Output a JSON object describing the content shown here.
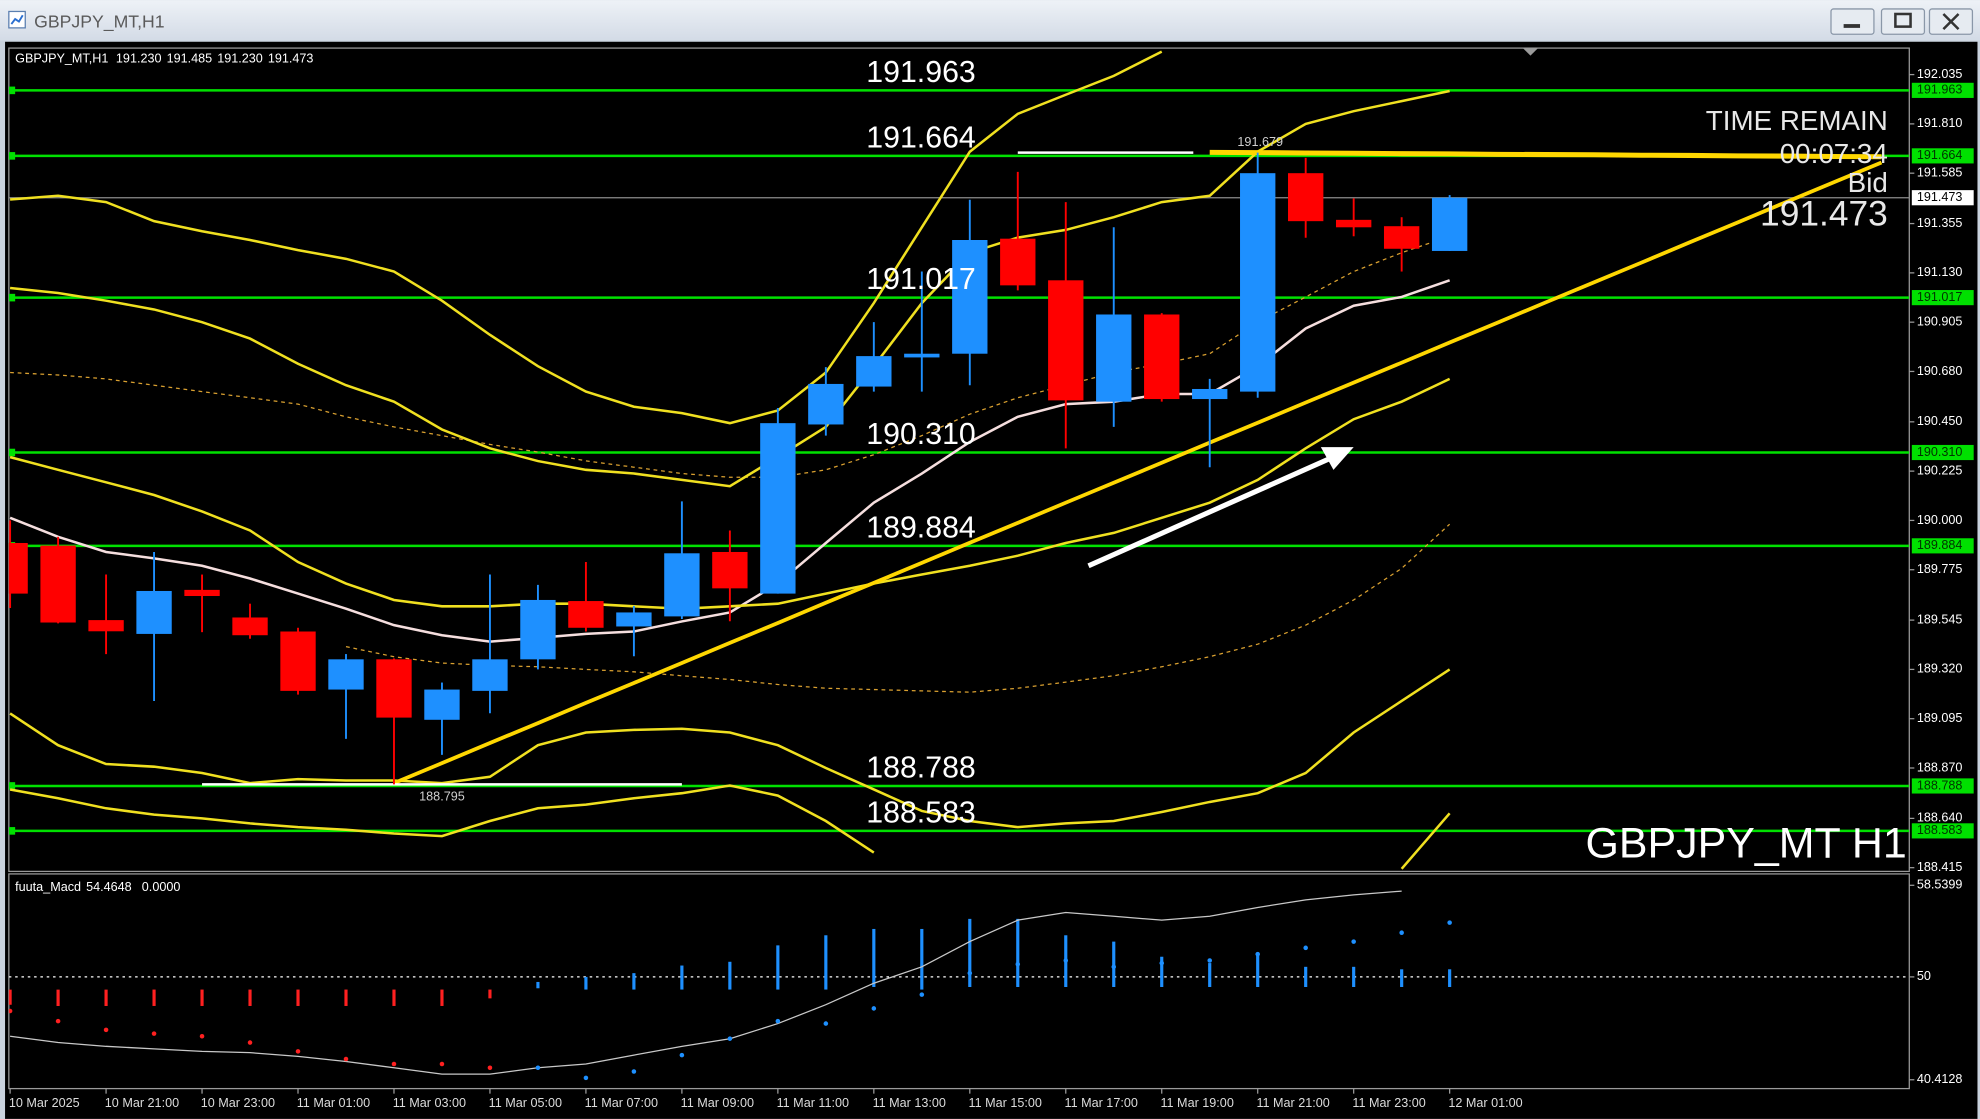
{
  "window_title": "GBPJPY_MT,H1",
  "chart_data": {
    "type": "candlestick",
    "symbol": "GBPJPY_MT,H1",
    "header_values": [
      {
        "value": 191.23,
        "label": "191.230"
      },
      191.485,
      {
        "value": 191.23,
        "label": "191.230"
      },
      191.473
    ],
    "categories": [
      "10 Mar 2025",
      null,
      "10 Mar 21:00",
      null,
      "10 Mar 23:00",
      null,
      "11 Mar 01:00",
      null,
      "11 Mar 03:00",
      null,
      "11 Mar 05:00",
      null,
      "11 Mar 07:00",
      null,
      "11 Mar 09:00",
      null,
      "11 Mar 11:00",
      null,
      "11 Mar 13:00",
      null,
      "11 Mar 15:00",
      null,
      "11 Mar 17:00",
      null,
      "11 Mar 19:00",
      null,
      "11 Mar 21:00",
      null,
      "11 Mar 23:00",
      null,
      "12 Mar 01:00",
      null,
      null,
      null,
      null,
      null,
      null,
      null,
      null,
      null
    ],
    "open": [
      189.897,
      189.885,
      189.545,
      189.482,
      189.683,
      189.557,
      189.493,
      189.228,
      189.366,
      189.09,
      189.222,
      189.366,
      189.632,
      189.516,
      189.562,
      189.856,
      189.666,
      190.438,
      190.611,
      190.744,
      190.761,
      191.286,
      191.096,
      190.542,
      190.94,
      190.554,
      190.588,
      191.585,
      191.372,
      191.343,
      191.23,
      null,
      null,
      null,
      null,
      null,
      null,
      null,
      null,
      null
    ],
    "high": [
      190.0,
      189.925,
      189.753,
      189.856,
      189.753,
      189.62,
      189.51,
      189.39,
      189.37,
      189.26,
      189.753,
      189.706,
      189.81,
      189.61,
      190.087,
      189.954,
      190.513,
      190.7,
      190.905,
      191.136,
      191.464,
      191.591,
      191.453,
      191.338,
      190.946,
      190.646,
      191.679,
      191.655,
      191.47,
      191.384,
      191.485,
      null,
      null,
      null,
      null,
      null,
      null,
      null,
      null,
      null
    ],
    "low": [
      189.6,
      189.53,
      189.39,
      189.176,
      189.49,
      189.46,
      189.205,
      189.003,
      188.795,
      188.93,
      189.12,
      189.32,
      189.493,
      189.38,
      189.55,
      189.54,
      189.666,
      190.387,
      190.588,
      190.588,
      190.617,
      191.05,
      190.329,
      190.427,
      190.542,
      190.243,
      190.56,
      191.29,
      191.297,
      191.136,
      191.23,
      null,
      null,
      null,
      null,
      null,
      null,
      null,
      null,
      null
    ],
    "close": [
      189.666,
      189.534,
      189.494,
      189.678,
      189.655,
      189.476,
      189.222,
      189.366,
      189.1,
      189.228,
      189.366,
      189.637,
      189.51,
      189.58,
      189.85,
      189.69,
      190.444,
      190.623,
      190.75,
      190.761,
      191.28,
      191.073,
      190.548,
      190.94,
      190.554,
      190.6,
      191.585,
      191.366,
      191.338,
      191.24,
      191.473,
      null,
      null,
      null,
      null,
      null,
      null,
      null,
      null,
      null
    ],
    "up_color": "#1e90ff",
    "down_color": "#ff0000",
    "ylim": [
      188.398,
      192.156
    ],
    "yticks": [
      192.035,
      {
        "value": 191.81,
        "label": "191.810"
      },
      191.585,
      191.355,
      {
        "value": 191.13,
        "label": "191.130"
      },
      190.905,
      {
        "value": 190.68,
        "label": "190.680"
      },
      {
        "value": 190.45,
        "label": "190.450"
      },
      190.225,
      {
        "value": 190,
        "label": "190.000"
      },
      189.775,
      189.545,
      {
        "value": 189.32,
        "label": "189.320"
      },
      189.095,
      {
        "value": 188.87,
        "label": "188.870"
      },
      {
        "value": 188.64,
        "label": "188.640"
      },
      188.415
    ],
    "levels": [
      191.963,
      191.664,
      191.017,
      {
        "value": 190.31,
        "label": "190.310"
      },
      189.884,
      188.788,
      188.583
    ],
    "level_color": "#00e000",
    "high_marker": 191.679,
    "low_marker": 188.795,
    "info": [
      "TIME REMAIN",
      "00:07:34",
      "Bid"
    ],
    "watermark": "GBPJPY_MT H1",
    "indicators": [
      {
        "color": "#f5dede",
        "width": 2,
        "dash": false,
        "values": [
          190.012,
          189.925,
          189.856,
          189.827,
          189.793,
          189.735,
          189.666,
          189.597,
          189.522,
          189.476,
          189.447,
          189.464,
          189.482,
          189.493,
          189.539,
          189.58,
          189.712,
          189.897,
          190.081,
          190.214,
          190.358,
          190.473,
          190.531,
          190.542,
          190.577,
          190.577,
          190.704,
          190.876,
          190.98,
          191.02,
          191.096,
          null,
          null,
          null,
          null,
          null,
          null,
          null,
          null,
          null
        ]
      },
      {
        "color": "#d9a030",
        "width": 1,
        "dash": true,
        "values": [
          190.675,
          190.664,
          190.646,
          190.617,
          190.588,
          190.56,
          190.531,
          190.473,
          190.427,
          190.387,
          190.347,
          190.312,
          190.272,
          190.243,
          190.214,
          190.197,
          190.197,
          190.231,
          190.3,
          190.387,
          190.485,
          190.56,
          190.617,
          190.675,
          190.715,
          190.761,
          190.905,
          191.02,
          191.136,
          191.222,
          191.297,
          null,
          null,
          null,
          null,
          null,
          null,
          null,
          null,
          null
        ]
      },
      {
        "color": "#d9a030",
        "width": 1,
        "dash": true,
        "values": [
          null,
          null,
          null,
          null,
          null,
          null,
          null,
          189.424,
          189.378,
          189.349,
          189.338,
          189.332,
          189.32,
          189.309,
          189.291,
          189.274,
          189.251,
          189.234,
          189.228,
          189.222,
          189.216,
          189.234,
          189.262,
          189.291,
          189.332,
          189.378,
          189.435,
          189.522,
          189.637,
          189.781,
          189.983,
          null,
          null,
          null,
          null,
          null,
          null,
          null,
          null,
          null
        ]
      },
      {
        "color": "#f0e020",
        "width": 2,
        "dash": false,
        "values": [
          191.061,
          191.038,
          191.003,
          190.963,
          190.905,
          190.83,
          190.715,
          190.617,
          190.542,
          190.415,
          190.329,
          190.271,
          190.231,
          190.214,
          190.185,
          190.156,
          190.289,
          190.427,
          190.704,
          190.992,
          191.222,
          191.291,
          191.326,
          191.384,
          191.453,
          191.482,
          191.683,
          191.81,
          191.868,
          191.914,
          191.96,
          null,
          null,
          null,
          null,
          null,
          null,
          null,
          null,
          null
        ]
      },
      {
        "color": "#f0e020",
        "width": 2,
        "dash": false,
        "values": [
          191.465,
          191.482,
          191.453,
          191.366,
          191.32,
          191.28,
          191.234,
          191.194,
          191.136,
          191.003,
          190.847,
          190.704,
          190.588,
          190.519,
          190.49,
          190.444,
          190.502,
          190.675,
          190.992,
          191.338,
          191.683,
          191.856,
          191.943,
          192.029,
          192.14,
          null,
          null,
          null,
          null,
          null,
          null,
          null,
          null,
          null,
          null,
          null,
          null,
          null,
          null,
          null
        ]
      },
      {
        "color": "#f0e020",
        "width": 2,
        "dash": false,
        "values": [
          190.289,
          190.231,
          190.174,
          190.116,
          190.041,
          189.954,
          189.81,
          189.712,
          189.637,
          189.608,
          189.608,
          189.62,
          189.62,
          189.608,
          189.597,
          189.608,
          189.62,
          189.666,
          189.712,
          189.753,
          189.793,
          189.839,
          189.897,
          189.943,
          190.012,
          190.081,
          190.185,
          190.329,
          190.462,
          190.542,
          190.646,
          null,
          null,
          null,
          null,
          null,
          null,
          null,
          null,
          null
        ]
      },
      {
        "color": "#f0e020",
        "width": 2,
        "dash": false,
        "values": [
          189.119,
          188.974,
          188.888,
          188.876,
          188.847,
          188.801,
          188.819,
          188.813,
          188.813,
          188.801,
          188.83,
          188.974,
          189.032,
          189.044,
          189.049,
          189.032,
          188.974,
          188.87,
          188.772,
          188.674,
          188.628,
          188.6,
          188.617,
          188.628,
          188.669,
          188.715,
          188.755,
          188.847,
          189.032,
          189.176,
          189.32,
          null,
          null,
          null,
          null,
          null,
          null,
          null,
          null,
          null
        ]
      },
      {
        "color": "#f0e020",
        "width": 2,
        "dash": false,
        "values": [
          188.772,
          188.732,
          188.686,
          188.657,
          188.64,
          188.617,
          188.6,
          188.588,
          188.571,
          188.559,
          188.628,
          188.686,
          188.703,
          188.732,
          188.755,
          188.79,
          188.744,
          188.628,
          188.484,
          null,
          null,
          null,
          null,
          null,
          null,
          null,
          null,
          null,
          null,
          188.41,
          188.663,
          null,
          null,
          null,
          null,
          null,
          null,
          null,
          null,
          null
        ]
      }
    ],
    "trendlines": [
      {
        "color": "#ffd700",
        "width": 3,
        "values": [
          null,
          null,
          null,
          null,
          null,
          null,
          null,
          null,
          188.801,
          188.892,
          188.984,
          189.075,
          189.167,
          189.258,
          189.349,
          189.441,
          189.532,
          189.624,
          189.715,
          189.806,
          189.898,
          189.989,
          190.081,
          190.172,
          190.263,
          190.355,
          190.446,
          190.538,
          190.629,
          190.72,
          190.812,
          190.903,
          190.995,
          191.086,
          191.177,
          191.269,
          191.36,
          191.452,
          191.543,
          191.634
        ]
      },
      {
        "color": "#ffd700",
        "width": 4,
        "values": [
          null,
          null,
          null,
          null,
          null,
          null,
          null,
          null,
          null,
          null,
          null,
          null,
          null,
          null,
          null,
          null,
          null,
          null,
          null,
          null,
          null,
          null,
          null,
          null,
          null,
          191.68,
          191.679,
          191.677,
          191.676,
          191.674,
          191.673,
          191.671,
          191.67,
          191.669,
          191.667,
          191.666,
          191.664,
          191.663,
          191.661,
          191.66
        ]
      }
    ],
    "macd": {
      "title": "fuuta_Macd",
      "header_values": [
        54.4648,
        {
          "value": 0,
          "label": "0.0000"
        }
      ],
      "ylim": [
        40.4128,
        58.5399
      ],
      "yticks": [
        58.5399,
        50,
        40.4128
      ],
      "hist_high": [
        48.82,
        48.82,
        48.82,
        48.82,
        48.82,
        48.82,
        48.82,
        48.82,
        48.82,
        48.82,
        48.82,
        49.53,
        50,
        50.35,
        51.06,
        51.41,
        52.94,
        53.88,
        54.47,
        54.47,
        55.41,
        55.41,
        53.88,
        53.29,
        51.88,
        51.29,
        52.12,
        50.94,
        50.94,
        50.71,
        50.71,
        null,
        null,
        null,
        null,
        null,
        null,
        null,
        null,
        null
      ],
      "hist_low": [
        47.41,
        47.29,
        47.29,
        47.29,
        47.29,
        47.29,
        47.29,
        47.29,
        47.29,
        47.29,
        48.0,
        48.94,
        48.82,
        48.82,
        48.82,
        48.82,
        48.82,
        48.82,
        49.06,
        48.82,
        49.06,
        49.06,
        49.06,
        49.06,
        49.06,
        49.06,
        49.06,
        49.06,
        49.06,
        49.06,
        49.06,
        null,
        null,
        null,
        null,
        null,
        null,
        null,
        null,
        null
      ],
      "colors": [
        "#ff2020",
        "#ff2020",
        "#ff2020",
        "#ff2020",
        "#ff2020",
        "#ff2020",
        "#ff2020",
        "#ff2020",
        "#ff2020",
        "#ff2020",
        "#ff2020",
        "#1e90ff",
        "#1e90ff",
        "#1e90ff",
        "#1e90ff",
        "#1e90ff",
        "#1e90ff",
        "#1e90ff",
        "#1e90ff",
        "#1e90ff",
        "#1e90ff",
        "#1e90ff",
        "#1e90ff",
        "#1e90ff",
        "#1e90ff",
        "#1e90ff",
        "#1e90ff",
        "#1e90ff",
        "#1e90ff",
        "#1e90ff",
        "#1e90ff",
        null,
        null,
        null,
        null,
        null,
        null,
        null,
        null,
        null
      ],
      "dots": [
        46.82,
        45.88,
        45.06,
        44.71,
        44.47,
        43.88,
        43.06,
        42.35,
        41.88,
        41.88,
        41.53,
        41.53,
        40.59,
        41.18,
        42.71,
        44.24,
        45.88,
        45.65,
        47.06,
        48.35,
        50.35,
        51.18,
        51.53,
        50.94,
        51.29,
        51.53,
        52.12,
        52.71,
        53.29,
        54.12,
        55.06,
        null,
        null,
        null,
        null,
        null,
        null,
        null,
        null,
        null
      ],
      "signal": [
        44.47,
        43.88,
        43.53,
        43.29,
        43.06,
        42.94,
        42.59,
        42.12,
        41.53,
        40.94,
        40.94,
        41.53,
        41.88,
        42.71,
        43.53,
        44.24,
        45.65,
        47.41,
        49.41,
        50.94,
        53.29,
        55.29,
        56.0,
        55.65,
        55.29,
        55.65,
        56.47,
        57.18,
        57.65,
        58.0,
        null,
        null,
        null,
        null,
        null,
        null,
        null,
        null,
        null,
        null
      ],
      "signal_color": "#c8c8c8"
    }
  }
}
